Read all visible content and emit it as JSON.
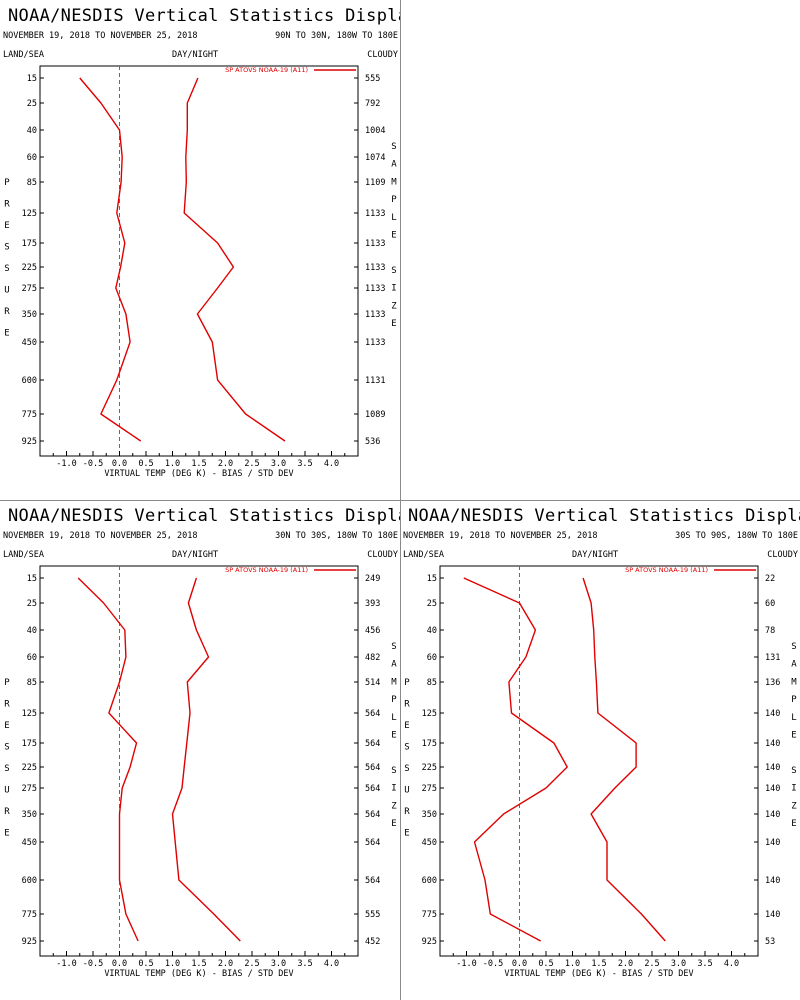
{
  "header": {
    "left_label": "LAND/SEA",
    "middle_label": "DAY/NIGHT",
    "right_label": "CLOUDY",
    "y_axis_letters": [
      "P",
      "R",
      "E",
      "S",
      "S",
      "U",
      "R",
      "E"
    ],
    "sample_letters": [
      "S",
      "A",
      "M",
      "P",
      "L",
      "E",
      "",
      "S",
      "I",
      "Z",
      "E"
    ],
    "xlabel": "VIRTUAL TEMP (DEG K) - BIAS / STD DEV",
    "legend": "SP ATOVS NOAA-19 (A11)",
    "line_color": "#e00000",
    "zero_line_color": "#5a6aa0"
  },
  "chart_data": [
    {
      "type": "line",
      "title": "NOAA/NESDIS Vertical Statistics Display",
      "dates": "NOVEMBER 19, 2018 TO NOVEMBER 25, 2018",
      "region": "90N TO 30N, 180W TO 180E",
      "xlim": [
        -1.5,
        4.5
      ],
      "xticks": [
        "-1.0",
        "-0.5",
        "0.0",
        "0.5",
        "1.0",
        "1.5",
        "2.0",
        "2.5",
        "3.0",
        "3.5",
        "4.0"
      ],
      "pressure_levels": [
        "15",
        "25",
        "40",
        "60",
        "85",
        "125",
        "175",
        "225",
        "275",
        "350",
        "450",
        "600",
        "775",
        "925"
      ],
      "sample_size": [
        "555",
        "792",
        "1004",
        "1074",
        "1109",
        "1133",
        "1133",
        "1133",
        "1133",
        "1133",
        "1133",
        "1131",
        "1089",
        "536"
      ],
      "series": [
        {
          "name": "bias",
          "values": [
            -0.75,
            -0.35,
            0.0,
            0.05,
            0.03,
            -0.05,
            0.1,
            0.02,
            -0.07,
            0.12,
            0.2,
            -0.05,
            -0.35,
            0.4
          ]
        },
        {
          "name": "std_dev",
          "values": [
            1.48,
            1.28,
            1.28,
            1.25,
            1.26,
            1.22,
            1.85,
            2.15,
            1.85,
            1.47,
            1.75,
            1.85,
            2.38,
            3.12
          ]
        }
      ]
    },
    {
      "type": "line",
      "title": "NOAA/NESDIS Vertical Statistics Display",
      "dates": "NOVEMBER 19, 2018 TO NOVEMBER 25, 2018",
      "region": "30N TO 30S, 180W TO 180E",
      "xlim": [
        -1.5,
        4.5
      ],
      "xticks": [
        "-1.0",
        "-0.5",
        "0.0",
        "0.5",
        "1.0",
        "1.5",
        "2.0",
        "2.5",
        "3.0",
        "3.5",
        "4.0"
      ],
      "pressure_levels": [
        "15",
        "25",
        "40",
        "60",
        "85",
        "125",
        "175",
        "225",
        "275",
        "350",
        "450",
        "600",
        "775",
        "925"
      ],
      "sample_size": [
        "249",
        "393",
        "456",
        "482",
        "514",
        "564",
        "564",
        "564",
        "564",
        "564",
        "564",
        "564",
        "555",
        "452"
      ],
      "series": [
        {
          "name": "bias",
          "values": [
            -0.78,
            -0.3,
            0.1,
            0.12,
            0.0,
            -0.2,
            0.32,
            0.2,
            0.05,
            0.0,
            0.0,
            0.0,
            0.12,
            0.35
          ]
        },
        {
          "name": "std_dev",
          "values": [
            1.45,
            1.3,
            1.45,
            1.68,
            1.28,
            1.33,
            1.27,
            1.22,
            1.18,
            1.0,
            1.05,
            1.12,
            1.78,
            2.28
          ]
        }
      ]
    },
    {
      "type": "line",
      "title": "NOAA/NESDIS Vertical Statistics Display",
      "dates": "NOVEMBER 19, 2018 TO NOVEMBER 25, 2018",
      "region": "30S TO 90S, 180W TO 180E",
      "xlim": [
        -1.5,
        4.5
      ],
      "xticks": [
        "-1.0",
        "-0.5",
        "0.0",
        "0.5",
        "1.0",
        "1.5",
        "2.0",
        "2.5",
        "3.0",
        "3.5",
        "4.0"
      ],
      "pressure_levels": [
        "15",
        "25",
        "40",
        "60",
        "85",
        "125",
        "175",
        "225",
        "275",
        "350",
        "450",
        "600",
        "775",
        "925"
      ],
      "sample_size": [
        "22",
        "60",
        "78",
        "131",
        "136",
        "140",
        "140",
        "140",
        "140",
        "140",
        "140",
        "140",
        "140",
        "53"
      ],
      "series": [
        {
          "name": "bias",
          "values": [
            -1.05,
            0.0,
            0.3,
            0.12,
            -0.2,
            -0.15,
            0.65,
            0.9,
            0.5,
            -0.3,
            -0.85,
            -0.65,
            -0.55,
            0.4
          ]
        },
        {
          "name": "std_dev",
          "values": [
            1.2,
            1.35,
            1.4,
            1.42,
            1.45,
            1.48,
            2.2,
            2.2,
            1.8,
            1.35,
            1.65,
            1.65,
            2.3,
            2.75
          ]
        }
      ]
    }
  ]
}
